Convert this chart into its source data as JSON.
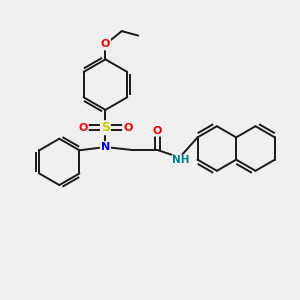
{
  "background_color": "#f0f0f0",
  "bond_color": "#1a1a1a",
  "atom_colors": {
    "N": "#0000ff",
    "O": "#ff0000",
    "S": "#cccc00",
    "NH": "#008080"
  },
  "figsize": [
    3.0,
    3.0
  ],
  "dpi": 100,
  "xlim": [
    0,
    10
  ],
  "ylim": [
    0,
    10
  ]
}
